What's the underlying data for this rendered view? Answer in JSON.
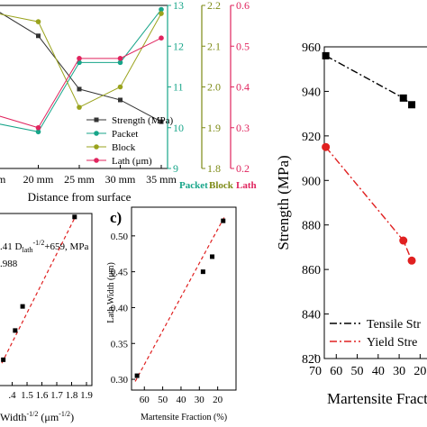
{
  "chart_data": [
    {
      "id": "top_left",
      "type": "line",
      "xlabel": "Distance from surface",
      "x_ticks": [
        "mm",
        "20 mm",
        "25 mm",
        "30 mm",
        "35 mm"
      ],
      "x": [
        15,
        20,
        25,
        30,
        35
      ],
      "xlim": [
        15,
        35
      ],
      "legend_position": "bottom-right",
      "axes": [
        {
          "key": "strength",
          "ylabel": "",
          "ylim": [
            810,
            960
          ],
          "ticks": []
        },
        {
          "key": "packet",
          "ylabel": "Packet",
          "ylim": [
            9,
            13
          ],
          "ticks": [
            "9",
            "10",
            "11",
            "12",
            "13"
          ],
          "color": "#17a589"
        },
        {
          "key": "block",
          "ylabel": "Block",
          "ylim": [
            1.8,
            2.2
          ],
          "ticks": [
            "1.8",
            "1.9",
            "2.0",
            "2.1",
            "2.2"
          ],
          "color": "#7d8a16"
        },
        {
          "key": "lath",
          "ylabel": "Lath",
          "ylim": [
            0.2,
            0.6
          ],
          "ticks": [
            "0.2",
            "0.3",
            "0.4",
            "0.5",
            "0.6"
          ],
          "color": "#e0245e"
        }
      ],
      "series": [
        {
          "name": "Strength (MPa)",
          "axis": "strength",
          "color": "#333333",
          "marker": "square",
          "values": [
            955,
            932,
            883,
            873,
            853
          ]
        },
        {
          "name": "Packet",
          "axis": "packet",
          "color": "#17a589",
          "marker": "circle",
          "values": [
            10.1,
            9.9,
            11.6,
            11.6,
            12.9
          ]
        },
        {
          "name": "Block",
          "axis": "block",
          "color": "#9aa31d",
          "marker": "circle",
          "values": [
            2.18,
            2.16,
            1.95,
            2.0,
            2.18
          ]
        },
        {
          "name": "Lath (μm)",
          "axis": "lath",
          "color": "#e0245e",
          "marker": "circle",
          "values": [
            0.33,
            0.3,
            0.47,
            0.47,
            0.52
          ]
        }
      ]
    },
    {
      "id": "bottom_left",
      "type": "scatter",
      "xlabel_parts": [
        "Width",
        "-1/2",
        " (μm",
        "-1/2",
        ")"
      ],
      "x_ticks": [
        ".4",
        "1.5",
        "1.6",
        "1.7",
        "1.8",
        "1.9"
      ],
      "xlim": [
        1.33,
        1.9
      ],
      "ylim": [
        0,
        10
      ],
      "equation_parts": [
        ".41 D",
        "lath",
        "-1/2",
        "+659, MPa"
      ],
      "r2_text": ".988",
      "x": [
        1.34,
        1.42,
        1.47,
        1.82
      ],
      "y": [
        1.5,
        3.2,
        4.6,
        9.8
      ],
      "fit": {
        "x": [
          1.33,
          1.83
        ],
        "y": [
          1.3,
          9.9
        ]
      }
    },
    {
      "id": "panel_c",
      "type": "scatter",
      "panel_label": "c)",
      "xlabel": "Martensite Fraction (%)",
      "ylabel": "Lath Width (μm)",
      "xlim": [
        67,
        10
      ],
      "ylim": [
        0.285,
        0.54
      ],
      "x_ticks": [
        60,
        50,
        40,
        30,
        20
      ],
      "y_ticks": [
        0.3,
        0.35,
        0.4,
        0.45,
        0.5
      ],
      "x": [
        64,
        28,
        23,
        17
      ],
      "y": [
        0.305,
        0.45,
        0.471,
        0.521
      ],
      "fit": {
        "x": [
          65,
          16
        ],
        "y": [
          0.297,
          0.528
        ]
      }
    },
    {
      "id": "right",
      "type": "line",
      "xlabel": "Martensite Fracti",
      "ylabel": "Strength (MPa)",
      "xlim": [
        70,
        15
      ],
      "ylim": [
        820,
        960
      ],
      "x_ticks": [
        70,
        60,
        50,
        40,
        30,
        20
      ],
      "y_ticks": [
        820,
        840,
        860,
        880,
        900,
        920,
        940,
        960
      ],
      "series": [
        {
          "name": "Tensile Str",
          "color": "#000000",
          "dash": "8,3,2,3",
          "x": [
            65,
            28,
            24
          ],
          "y": [
            956,
            937,
            934
          ]
        },
        {
          "name": "Yield Stre",
          "color": "#e02020",
          "dash": "8,3,2,3",
          "x": [
            65,
            28,
            24
          ],
          "y": [
            915,
            873,
            864
          ]
        }
      ],
      "legend_position": "bottom-right"
    }
  ]
}
